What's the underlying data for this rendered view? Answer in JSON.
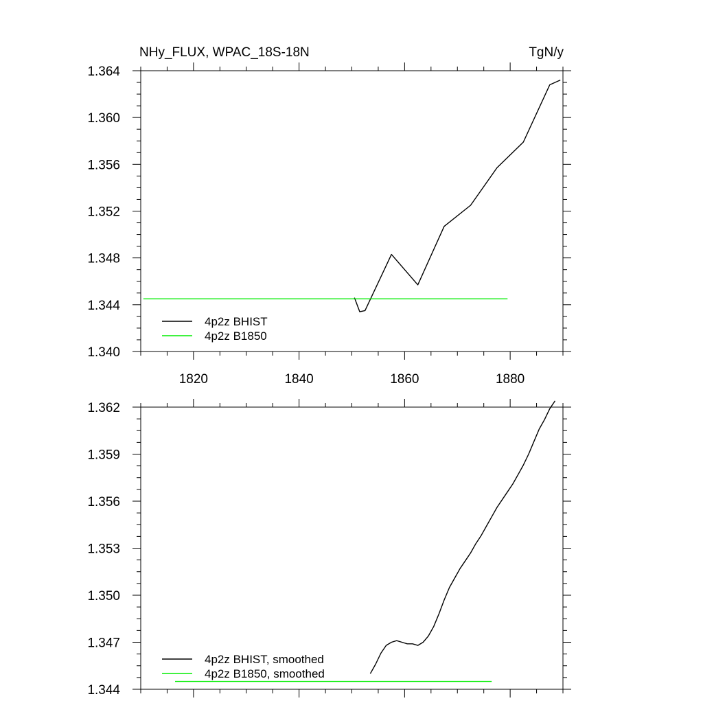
{
  "chart_data": [
    {
      "type": "line",
      "title_left": "NHy_FLUX, WPAC_18S-18N",
      "title_right": "TgN/y",
      "xlim": [
        1810,
        1890
      ],
      "ylim": [
        1.34,
        1.364
      ],
      "xticks": [
        1820,
        1840,
        1860,
        1880
      ],
      "xtick_labels": [
        "1820",
        "1840",
        "1860",
        "1880"
      ],
      "yticks": [
        1.34,
        1.344,
        1.348,
        1.352,
        1.356,
        1.36,
        1.364
      ],
      "ytick_labels": [
        "1.340",
        "1.344",
        "1.348",
        "1.352",
        "1.356",
        "1.360",
        "1.364"
      ],
      "grid": false,
      "legend_position": "bottom-left",
      "series": [
        {
          "name": "4p2z BHIST",
          "color": "#000000",
          "x": [
            1850.5,
            1851.5,
            1852.5,
            1857.5,
            1862.5,
            1867.5,
            1872.5,
            1877.5,
            1882.5,
            1887.5,
            1889.5
          ],
          "y": [
            1.3446,
            1.3434,
            1.3435,
            1.3483,
            1.3457,
            1.3507,
            1.3525,
            1.3557,
            1.3579,
            1.3628,
            1.3632
          ]
        },
        {
          "name": "4p2z B1850",
          "color": "#00ee00",
          "x": [
            1810.5,
            1879.5
          ],
          "y": [
            1.3445,
            1.3445
          ]
        }
      ]
    },
    {
      "type": "line",
      "xlim": [
        1810,
        1890
      ],
      "ylim": [
        1.344,
        1.362
      ],
      "xticks": [
        1820,
        1840,
        1860,
        1880
      ],
      "yticks": [
        1.344,
        1.347,
        1.35,
        1.353,
        1.356,
        1.359,
        1.362
      ],
      "ytick_labels": [
        "1.344",
        "1.347",
        "1.350",
        "1.353",
        "1.356",
        "1.359",
        "1.362"
      ],
      "grid": false,
      "legend_position": "bottom-left",
      "series": [
        {
          "name": "4p2z BHIST, smoothed",
          "color": "#000000",
          "x": [
            1853.5,
            1854.5,
            1855.5,
            1856.5,
            1857.5,
            1858.5,
            1859.5,
            1860.5,
            1861.5,
            1862.5,
            1863.5,
            1864.5,
            1865.5,
            1866.5,
            1867.5,
            1868.5,
            1869.5,
            1870.5,
            1871.5,
            1872.5,
            1873.5,
            1874.5,
            1875.5,
            1876.5,
            1877.5,
            1878.5,
            1879.5,
            1880.5,
            1881.5,
            1882.5,
            1883.5,
            1884.5,
            1885.5,
            1886.5,
            1887.5,
            1888.5
          ],
          "y": [
            1.345,
            1.3456,
            1.3463,
            1.3468,
            1.347,
            1.3471,
            1.347,
            1.3469,
            1.3469,
            1.3468,
            1.347,
            1.3474,
            1.348,
            1.3488,
            1.3497,
            1.3505,
            1.3511,
            1.3517,
            1.3522,
            1.3527,
            1.3533,
            1.3538,
            1.3544,
            1.355,
            1.3556,
            1.3561,
            1.3566,
            1.3571,
            1.3577,
            1.3583,
            1.359,
            1.3598,
            1.3606,
            1.3612,
            1.3619,
            1.3624
          ]
        },
        {
          "name": "4p2z B1850, smoothed",
          "color": "#00ee00",
          "x": [
            1816.5,
            1876.5
          ],
          "y": [
            1.3445,
            1.3445
          ]
        }
      ]
    }
  ]
}
